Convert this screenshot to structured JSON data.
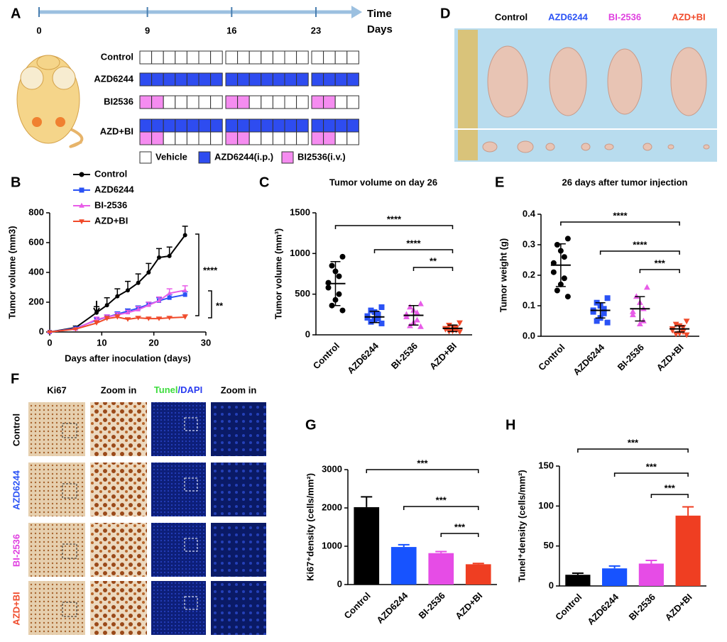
{
  "panel_labels": [
    "A",
    "B",
    "C",
    "D",
    "E",
    "F",
    "G",
    "H"
  ],
  "panel_a": {
    "ticks": [
      0,
      9,
      16,
      23
    ],
    "axis_labels": [
      "Time",
      "Days"
    ],
    "rows": [
      "Control",
      "AZD6244",
      "BI2536",
      "AZD+BI"
    ],
    "legend": [
      "Vehicle",
      "AZD6244(i.p.)",
      "BI2536(i.v.)"
    ]
  },
  "panel_d": {
    "labels": [
      "Control",
      "AZD6244",
      "BI-2536",
      "AZD+BI"
    ]
  },
  "panel_f": {
    "headers": [
      "Ki67",
      "Zoom in",
      [
        "Tunel",
        "/DAPI"
      ],
      "Zoom in"
    ],
    "rows": [
      "Control",
      "AZD6244",
      "BI-2536",
      "AZD+BI"
    ]
  },
  "chart_data": [
    {
      "type": "line",
      "xlabel": "Days after inoculation (days)",
      "ylabel": "Tumor volume (mm3)",
      "x": [
        0,
        5,
        9,
        11,
        13,
        15,
        17,
        19,
        21,
        23,
        26
      ],
      "xlim": [
        0,
        30
      ],
      "xticks": [
        0,
        10,
        20,
        30
      ],
      "ylim": [
        0,
        800
      ],
      "yticks": [
        0,
        200,
        400,
        600,
        800
      ],
      "series": [
        {
          "name": "Control",
          "color": "#000000",
          "values": [
            0,
            30,
            130,
            180,
            240,
            280,
            330,
            400,
            500,
            510,
            650
          ],
          "errors": [
            0,
            10,
            40,
            50,
            50,
            60,
            60,
            60,
            60,
            60,
            60
          ]
        },
        {
          "name": "AZD6244",
          "color": "#2a52f5",
          "values": [
            0,
            25,
            80,
            100,
            120,
            140,
            160,
            185,
            210,
            230,
            250
          ],
          "errors": [
            0,
            5,
            15,
            15,
            15,
            15,
            15,
            15,
            20,
            20,
            20
          ]
        },
        {
          "name": "BI-2536",
          "color": "#e85ce8",
          "values": [
            0,
            20,
            85,
            100,
            115,
            130,
            150,
            180,
            210,
            260,
            280
          ],
          "errors": [
            0,
            5,
            15,
            15,
            15,
            15,
            20,
            20,
            25,
            30,
            30
          ]
        },
        {
          "name": "AZD+BI",
          "color": "#f04a2a",
          "values": [
            0,
            20,
            60,
            90,
            100,
            85,
            95,
            90,
            90,
            95,
            100
          ],
          "errors": [
            0,
            5,
            15,
            15,
            15,
            10,
            10,
            10,
            10,
            10,
            15
          ]
        }
      ],
      "annotations": [
        "****",
        "**"
      ]
    },
    {
      "type": "dot",
      "title": "Tumor volume on day 26",
      "ylabel": "Tumor  volume (mm³)",
      "ylim": [
        0,
        1500
      ],
      "yticks": [
        0,
        500,
        1000,
        1500
      ],
      "groups": [
        {
          "name": "Control",
          "color": "#000000",
          "values": [
            960,
            850,
            780,
            720,
            640,
            580,
            500,
            430,
            360,
            300
          ],
          "mean": 630,
          "sd": 270
        },
        {
          "name": "AZD6244",
          "color": "#2a52f5",
          "values": [
            340,
            300,
            280,
            250,
            230,
            210,
            200,
            180,
            160,
            140
          ],
          "mean": 220,
          "sd": 70
        },
        {
          "name": "BI-2536",
          "color": "#e85ce8",
          "values": [
            380,
            340,
            300,
            270,
            250,
            220,
            180,
            150,
            110,
            100
          ],
          "mean": 240,
          "sd": 120
        },
        {
          "name": "AZD+BI",
          "color": "#f04a2a",
          "values": [
            150,
            120,
            100,
            90,
            80,
            70,
            60,
            50,
            45,
            40
          ],
          "mean": 80,
          "sd": 40
        }
      ],
      "annotations": [
        "****",
        "****",
        "**"
      ]
    },
    {
      "type": "dot",
      "title": "26 days after tumor injection",
      "ylabel": "Tumor  weight (g)",
      "ylim": [
        0,
        0.4
      ],
      "yticks": [
        {
          "value": 0,
          "label": "0.0"
        },
        0.1,
        0.2,
        0.3,
        0.4
      ],
      "groups": [
        {
          "name": "Control",
          "color": "#000000",
          "values": [
            0.32,
            0.3,
            0.28,
            0.26,
            0.24,
            0.21,
            0.19,
            0.17,
            0.15,
            0.13
          ],
          "mean": 0.233,
          "sd": 0.07
        },
        {
          "name": "AZD6244",
          "color": "#2a52f5",
          "values": [
            0.125,
            0.11,
            0.1,
            0.09,
            0.085,
            0.08,
            0.075,
            0.06,
            0.05,
            0.045
          ],
          "mean": 0.085,
          "sd": 0.025
        },
        {
          "name": "BI-2536",
          "color": "#e85ce8",
          "values": [
            0.16,
            0.13,
            0.11,
            0.09,
            0.08,
            0.07,
            0.05,
            0.04
          ],
          "mean": 0.09,
          "sd": 0.04
        },
        {
          "name": "AZD+BI",
          "color": "#f04a2a",
          "values": [
            0.05,
            0.04,
            0.035,
            0.03,
            0.025,
            0.02,
            0.015,
            0.01,
            0.008,
            0.005
          ],
          "mean": 0.024,
          "sd": 0.01
        }
      ],
      "annotations": [
        "****",
        "****",
        "***"
      ]
    },
    {
      "type": "bar",
      "ylabel": "Ki67⁺density (cells/mm²)",
      "categories": [
        "Control",
        "AZD6244",
        "BI-2536",
        "AZD+BI"
      ],
      "values": [
        2020,
        980,
        820,
        530
      ],
      "errors": [
        270,
        60,
        40,
        20
      ],
      "colors": [
        "#000000",
        "#1753ff",
        "#e64ce6",
        "#ef3e22"
      ],
      "ylim": [
        0,
        3000
      ],
      "yticks": [
        0,
        1000,
        2000,
        3000
      ],
      "annotations": [
        "***",
        "***",
        "***"
      ]
    },
    {
      "type": "bar",
      "ylabel": "Tunel⁺density (cells/mm²)",
      "categories": [
        "Control",
        "AZD6244",
        "BI-2536",
        "AZD+BI"
      ],
      "values": [
        14,
        22,
        28,
        88
      ],
      "errors": [
        2,
        3,
        4,
        11
      ],
      "colors": [
        "#000000",
        "#1753ff",
        "#e64ce6",
        "#ef3e22"
      ],
      "ylim": [
        0,
        150
      ],
      "yticks": [
        0,
        50,
        100,
        150
      ],
      "annotations": [
        "***",
        "***",
        "***"
      ]
    }
  ]
}
